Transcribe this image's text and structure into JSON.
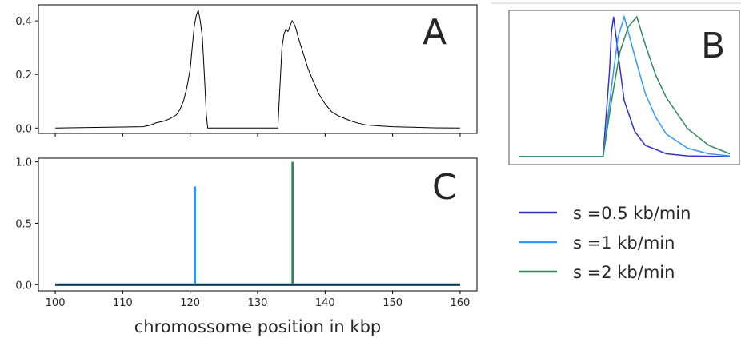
{
  "chart_data": [
    {
      "panel": "A",
      "type": "line",
      "xlabel": "",
      "ylabel": "",
      "xlim": [
        97.5,
        162.5
      ],
      "ylim": [
        -0.02,
        0.46
      ],
      "yticks": [
        0.0,
        0.2,
        0.4
      ],
      "ytick_labels": [
        "0.0",
        "0.2",
        "0.4"
      ],
      "grid": false,
      "color": "#000000",
      "series": [
        {
          "x": [
            100,
            113,
            114,
            115,
            116,
            117,
            118,
            118.5,
            119,
            119.5,
            120,
            120.3,
            120.6,
            120.9,
            121.2,
            121.5,
            121.8,
            122.1,
            122.4,
            122.6,
            133,
            133.3,
            133.6,
            133.9,
            134.2,
            134.5,
            134.8,
            135.1,
            135.4,
            135.7,
            136,
            136.5,
            137,
            137.5,
            138,
            138.5,
            139,
            140,
            141,
            142,
            143,
            144,
            145,
            146,
            148,
            150,
            153,
            156,
            160
          ],
          "y": [
            0,
            0.005,
            0.01,
            0.02,
            0.025,
            0.035,
            0.05,
            0.07,
            0.1,
            0.15,
            0.22,
            0.3,
            0.38,
            0.42,
            0.44,
            0.4,
            0.34,
            0.2,
            0.05,
            0,
            0,
            0.15,
            0.3,
            0.35,
            0.37,
            0.36,
            0.38,
            0.4,
            0.39,
            0.37,
            0.34,
            0.3,
            0.26,
            0.22,
            0.19,
            0.16,
            0.13,
            0.09,
            0.06,
            0.045,
            0.035,
            0.025,
            0.018,
            0.012,
            0.008,
            0.005,
            0.003,
            0.001,
            0
          ]
        }
      ]
    },
    {
      "panel": "B",
      "type": "line",
      "xlabel": "",
      "ylabel": "",
      "axes_ticks": false,
      "series": [
        {
          "color": "#3333cc",
          "x": [
            0,
            0.4,
            0.43,
            0.44,
            0.45,
            0.47,
            0.5,
            0.55,
            0.6,
            0.7,
            0.8,
            1.0
          ],
          "y": [
            0,
            0,
            0.6,
            0.9,
            1.0,
            0.75,
            0.4,
            0.18,
            0.08,
            0.02,
            0.005,
            0
          ]
        },
        {
          "color": "#3399ff",
          "x": [
            0,
            0.4,
            0.44,
            0.47,
            0.5,
            0.55,
            0.6,
            0.65,
            0.7,
            0.8,
            0.9,
            1.0
          ],
          "y": [
            0,
            0,
            0.5,
            0.85,
            1.0,
            0.72,
            0.45,
            0.28,
            0.16,
            0.06,
            0.02,
            0.005
          ]
        },
        {
          "color": "#2e8b57",
          "x": [
            0,
            0.4,
            0.44,
            0.48,
            0.52,
            0.56,
            0.6,
            0.65,
            0.7,
            0.8,
            0.9,
            1.0
          ],
          "y": [
            0,
            0,
            0.4,
            0.75,
            0.93,
            1.0,
            0.8,
            0.58,
            0.42,
            0.2,
            0.08,
            0.02
          ]
        }
      ]
    },
    {
      "panel": "C",
      "type": "line",
      "xlabel": "chromossome position in kbp",
      "ylabel": "",
      "xlim": [
        97.5,
        162.5
      ],
      "ylim": [
        -0.05,
        1.03
      ],
      "xticks": [
        100,
        110,
        120,
        130,
        140,
        150,
        160
      ],
      "xtick_labels": [
        "100",
        "110",
        "120",
        "130",
        "140",
        "150",
        "160"
      ],
      "yticks": [
        0.0,
        0.5,
        1.0
      ],
      "ytick_labels": [
        "0.0",
        "0.5",
        "1.0"
      ],
      "grid": false,
      "series": [
        {
          "name": "s =0.5 kb/min",
          "color": "#3333cc",
          "x": [
            100,
            160
          ],
          "y": [
            0,
            0
          ]
        },
        {
          "name": "s =1 kb/min",
          "color": "#3399ff",
          "x": [
            100,
            120.7,
            120.7,
            120.7,
            160
          ],
          "y": [
            0,
            0,
            0.8,
            0,
            0
          ]
        },
        {
          "name": "s =2 kb/min",
          "color": "#2e8b57",
          "x": [
            100,
            135.2,
            135.2,
            135.2,
            160
          ],
          "y": [
            0,
            0,
            1.0,
            0,
            0
          ]
        }
      ]
    }
  ],
  "legend": {
    "placement": "bottom-right",
    "entries": [
      {
        "label": "s =0.5 kb/min",
        "color": "#3333cc"
      },
      {
        "label": "s =1 kb/min",
        "color": "#3399ff"
      },
      {
        "label": "s =2 kb/min",
        "color": "#2e8b57"
      }
    ]
  },
  "panel_letters": {
    "a": "A",
    "b": "B",
    "c": "C"
  }
}
